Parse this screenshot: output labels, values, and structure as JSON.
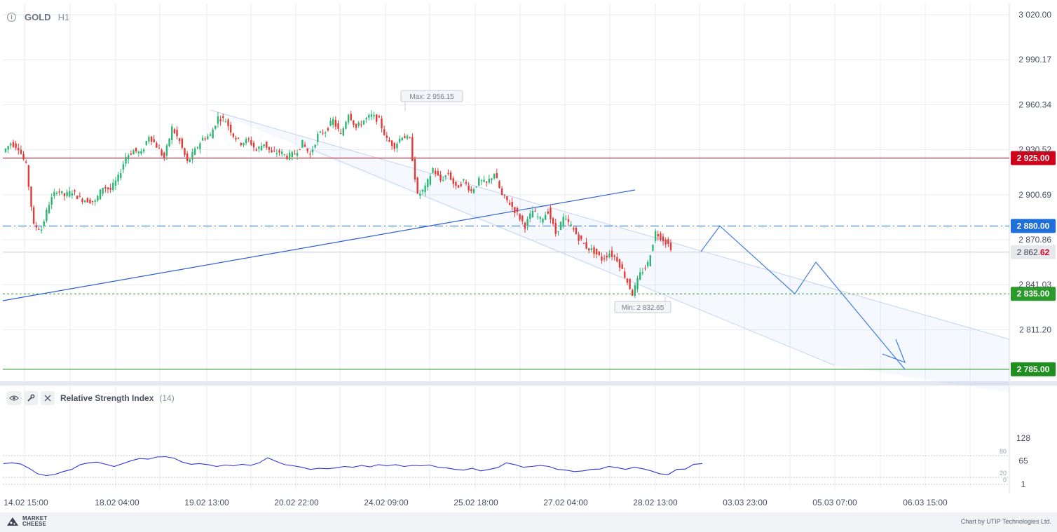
{
  "header": {
    "symbol": "GOLD",
    "timeframe": "H1"
  },
  "chart_data": [
    {
      "type": "candlestick",
      "title": "GOLD H1",
      "y_ticks": [
        "3 020.00",
        "2 990.17",
        "2 960.34",
        "2 930.52",
        "2 900.69",
        "2 870.86",
        "2 841.03",
        "2 811.20"
      ],
      "ylim": [
        2785,
        3020
      ],
      "x_ticks": [
        "14.02 15:00",
        "18.02 04:00",
        "19.02 13:00",
        "20.02 22:00",
        "24.02 09:00",
        "25.02 18:00",
        "27.02 04:00",
        "28.02 13:00",
        "03.03 23:00",
        "05.03 07:00",
        "06.03 15:00"
      ],
      "grid": true,
      "price_path": [
        2929,
        2935,
        2932,
        2920,
        2880,
        2878,
        2895,
        2904,
        2900,
        2903,
        2898,
        2897,
        2896,
        2906,
        2904,
        2912,
        2926,
        2930,
        2928,
        2940,
        2933,
        2925,
        2945,
        2936,
        2922,
        2930,
        2938,
        2940,
        2952,
        2950,
        2940,
        2935,
        2937,
        2930,
        2935,
        2928,
        2929,
        2926,
        2928,
        2935,
        2927,
        2940,
        2943,
        2950,
        2940,
        2955,
        2945,
        2950,
        2953,
        2950,
        2937,
        2933,
        2940,
        2937,
        2900,
        2905,
        2918,
        2910,
        2915,
        2905,
        2910,
        2903,
        2910,
        2908,
        2915,
        2900,
        2895,
        2888,
        2880,
        2890,
        2884,
        2890,
        2875,
        2885,
        2880,
        2872,
        2866,
        2863,
        2858,
        2862,
        2858,
        2847,
        2835,
        2848,
        2855,
        2876,
        2871,
        2866
      ],
      "levels": [
        {
          "price": "2 925.00",
          "value": 2925,
          "color": "#d0021b",
          "style": "solid"
        },
        {
          "price": "2 880.00",
          "value": 2880,
          "color": "#1e6fd9",
          "style": "dashdot"
        },
        {
          "price": "2 835.00",
          "value": 2835,
          "color": "#2a9a2a",
          "style": "dotted"
        },
        {
          "price": "2 785.00",
          "value": 2785,
          "color": "#1f8f1f",
          "style": "solid"
        }
      ],
      "current_price": {
        "main": "2 862.",
        "tail": "62",
        "value": 2862.62
      },
      "annotations": {
        "max": "Max: 2 956.15",
        "max_value": 2956.15,
        "min": "Min: 2 832.65",
        "min_value": 2832.65
      },
      "forecast_path": [
        2863,
        2880,
        2835,
        2856,
        2785
      ]
    },
    {
      "type": "line",
      "title": "Relative Strength Index",
      "period": "(14)",
      "y_ticks": [
        "128",
        "65",
        "1"
      ],
      "levels": [
        "80",
        "20",
        "0"
      ],
      "ylim": [
        1,
        128
      ],
      "values": [
        58,
        60,
        57,
        45,
        30,
        25,
        28,
        36,
        42,
        55,
        60,
        62,
        56,
        50,
        58,
        66,
        72,
        70,
        76,
        77,
        73,
        62,
        56,
        58,
        55,
        50,
        54,
        52,
        56,
        53,
        60,
        74,
        64,
        55,
        52,
        48,
        42,
        45,
        44,
        46,
        50,
        48,
        53,
        49,
        55,
        52,
        55,
        50,
        53,
        52,
        54,
        48,
        46,
        42,
        40,
        45,
        38,
        42,
        47,
        60,
        55,
        48,
        50,
        53,
        50,
        42,
        40,
        36,
        38,
        42,
        43,
        50,
        47,
        42,
        48,
        44,
        38,
        30,
        28,
        42,
        43,
        56,
        58
      ]
    }
  ],
  "rsi": {
    "title": "Relative Strength Index",
    "period": "(14)"
  },
  "footer": {
    "brand_top": "MARKET",
    "brand_bottom": "CHEESE",
    "credit": "Chart by UTIP Technologies Ltd."
  },
  "colors": {
    "bull": "#2bb673",
    "bear": "#e53935",
    "channel": "#4a86e8",
    "trendline": "#2f5fd0",
    "rsi": "#2b36e0"
  }
}
